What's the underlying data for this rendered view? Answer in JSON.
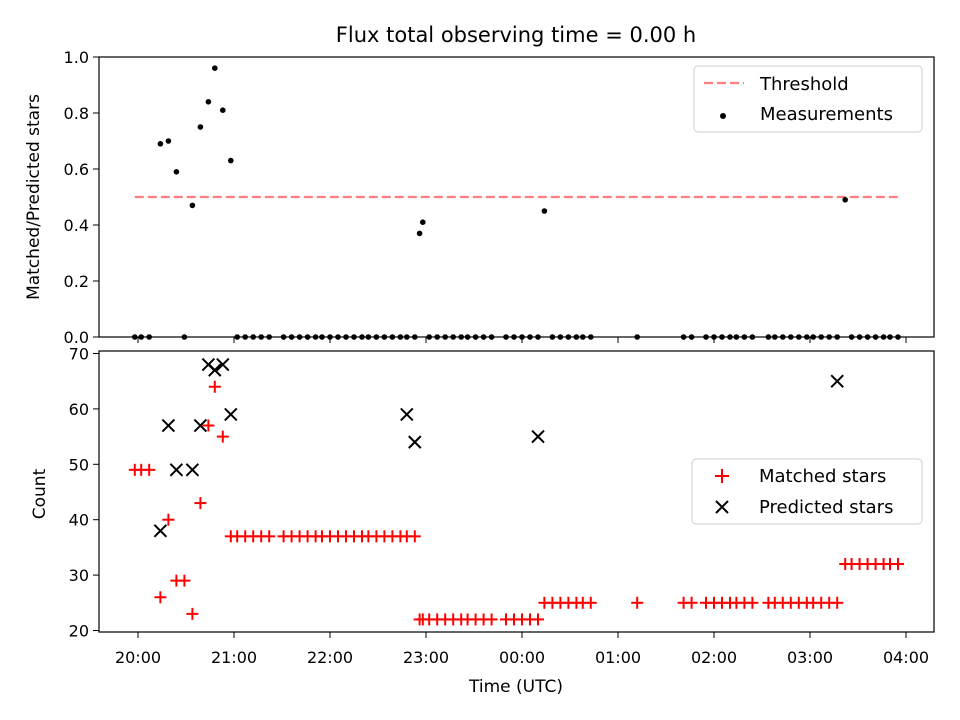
{
  "chart_data": [
    {
      "type": "scatter",
      "title": "Flux total observing time = 0.00 h",
      "ylabel": "Matched/Predicted stars",
      "ylim": [
        0,
        1
      ],
      "yticks": [
        "0.0",
        "0.2",
        "0.4",
        "0.6",
        "0.8",
        "1.0"
      ],
      "threshold": {
        "name": "Threshold",
        "value": 0.5,
        "x_range": [
          "19:58",
          "03:55"
        ],
        "color": "#ff7f7f",
        "style": "dashed"
      },
      "series": [
        {
          "name": "Measurements",
          "color": "#000000",
          "marker": "dot",
          "x": [
            "19:58",
            "20:02",
            "20:07",
            "20:14",
            "20:19",
            "20:24",
            "20:29",
            "20:34",
            "20:39",
            "20:44",
            "20:48",
            "20:53",
            "20:58",
            "21:02",
            "21:07",
            "21:12",
            "21:17",
            "21:22",
            "21:31",
            "21:36",
            "21:41",
            "21:46",
            "21:51",
            "21:55",
            "22:00",
            "22:05",
            "22:10",
            "22:15",
            "22:20",
            "22:24",
            "22:29",
            "22:34",
            "22:39",
            "22:44",
            "22:48",
            "22:53",
            "22:56",
            "22:58",
            "23:02",
            "23:07",
            "23:12",
            "23:17",
            "23:22",
            "23:26",
            "23:31",
            "23:36",
            "23:41",
            "23:50",
            "23:55",
            "00:00",
            "00:05",
            "00:10",
            "00:14",
            "00:19",
            "00:24",
            "00:29",
            "00:34",
            "00:38",
            "00:43",
            "01:12",
            "01:41",
            "01:46",
            "01:55",
            "02:00",
            "02:05",
            "02:10",
            "02:14",
            "02:19",
            "02:24",
            "02:34",
            "02:38",
            "02:43",
            "02:48",
            "02:53",
            "02:58",
            "03:02",
            "03:07",
            "03:12",
            "03:17",
            "03:22",
            "03:26",
            "03:31",
            "03:36",
            "03:41",
            "03:46",
            "03:50",
            "03:55"
          ],
          "y": [
            0,
            0,
            0,
            0.69,
            0.7,
            0.59,
            0,
            0.47,
            0.75,
            0.84,
            0.96,
            0.81,
            0.63,
            0,
            0,
            0,
            0,
            0,
            0,
            0,
            0,
            0,
            0,
            0,
            0,
            0,
            0,
            0,
            0,
            0,
            0,
            0,
            0,
            0,
            0,
            0,
            0.37,
            0.41,
            0,
            0,
            0,
            0,
            0,
            0,
            0,
            0,
            0,
            0,
            0,
            0,
            0,
            0,
            0.45,
            0,
            0,
            0,
            0,
            0,
            0,
            0,
            0,
            0,
            0,
            0,
            0,
            0,
            0,
            0,
            0,
            0,
            0,
            0,
            0,
            0,
            0,
            0,
            0,
            0,
            0,
            0.49,
            0,
            0,
            0,
            0,
            0,
            0,
            0
          ]
        }
      ],
      "legend_position": "upper right"
    },
    {
      "type": "scatter",
      "xlabel": "Time (UTC)",
      "ylabel": "Count",
      "ylim": [
        20,
        70
      ],
      "yticks": [
        "20",
        "30",
        "40",
        "50",
        "60",
        "70"
      ],
      "xticks": [
        "20:00",
        "21:00",
        "22:00",
        "23:00",
        "00:00",
        "01:00",
        "02:00",
        "03:00",
        "04:00"
      ],
      "series": [
        {
          "name": "Matched stars",
          "color": "#ff0000",
          "marker": "plus",
          "x": [
            "19:58",
            "20:02",
            "20:07",
            "20:14",
            "20:19",
            "20:24",
            "20:29",
            "20:34",
            "20:39",
            "20:44",
            "20:48",
            "20:53",
            "20:58",
            "21:02",
            "21:07",
            "21:12",
            "21:17",
            "21:22",
            "21:31",
            "21:36",
            "21:41",
            "21:46",
            "21:51",
            "21:55",
            "22:00",
            "22:05",
            "22:10",
            "22:15",
            "22:20",
            "22:24",
            "22:29",
            "22:34",
            "22:39",
            "22:44",
            "22:48",
            "22:53",
            "22:56",
            "22:58",
            "23:02",
            "23:07",
            "23:12",
            "23:17",
            "23:22",
            "23:26",
            "23:31",
            "23:36",
            "23:41",
            "23:50",
            "23:55",
            "00:00",
            "00:05",
            "00:10",
            "00:14",
            "00:19",
            "00:24",
            "00:29",
            "00:34",
            "00:38",
            "00:43",
            "01:12",
            "01:41",
            "01:46",
            "01:55",
            "02:00",
            "02:05",
            "02:10",
            "02:14",
            "02:19",
            "02:24",
            "02:34",
            "02:38",
            "02:43",
            "02:48",
            "02:53",
            "02:58",
            "03:02",
            "03:07",
            "03:12",
            "03:17",
            "03:22",
            "03:26",
            "03:31",
            "03:36",
            "03:41",
            "03:46",
            "03:50",
            "03:55"
          ],
          "y": [
            49,
            49,
            49,
            26,
            40,
            29,
            29,
            23,
            43,
            57,
            64,
            55,
            37,
            37,
            37,
            37,
            37,
            37,
            37,
            37,
            37,
            37,
            37,
            37,
            37,
            37,
            37,
            37,
            37,
            37,
            37,
            37,
            37,
            37,
            37,
            37,
            22,
            22,
            22,
            22,
            22,
            22,
            22,
            22,
            22,
            22,
            22,
            22,
            22,
            22,
            22,
            22,
            25,
            25,
            25,
            25,
            25,
            25,
            25,
            25,
            25,
            25,
            25,
            25,
            25,
            25,
            25,
            25,
            25,
            25,
            25,
            25,
            25,
            25,
            25,
            25,
            25,
            25,
            25,
            32,
            32,
            32,
            32,
            32,
            32,
            32,
            32
          ]
        },
        {
          "name": "Predicted stars",
          "color": "#000000",
          "marker": "x",
          "x": [
            "20:14",
            "20:19",
            "20:24",
            "20:34",
            "20:39",
            "20:44",
            "20:48",
            "20:53",
            "20:58",
            "22:48",
            "22:53",
            "00:10",
            "03:17"
          ],
          "y": [
            38,
            57,
            49,
            49,
            57,
            68,
            67,
            68,
            59,
            59,
            54,
            55,
            65
          ]
        }
      ],
      "legend_position": "center right"
    }
  ]
}
